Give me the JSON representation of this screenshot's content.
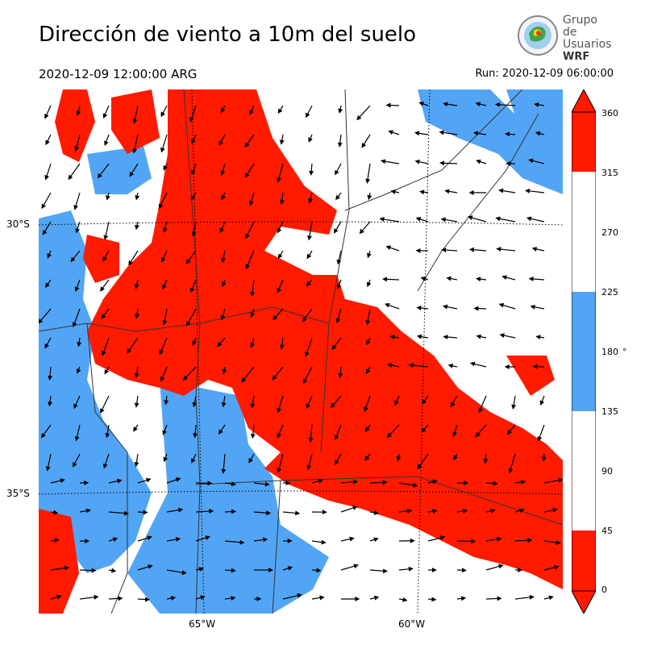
{
  "header": {
    "title": "Dirección de viento a 10m del suelo",
    "valid_time": "2020-12-09 12:00:00 ARG",
    "run_time": "Run: 2020-12-09 06:00:00"
  },
  "logo": {
    "line1": "Grupo de",
    "line2": "Usuarios",
    "line3": "WRF"
  },
  "map": {
    "lat_labels": [
      "30°S",
      "35°S"
    ],
    "lon_labels": [
      "65°W",
      "60°W"
    ],
    "colors": {
      "north": "#ff1a00",
      "south": "#52a5f5",
      "other": "#ffffff"
    }
  },
  "colorbar": {
    "ticks": [
      "360",
      "315",
      "270",
      "225",
      "180",
      "135",
      "90",
      "45",
      "0"
    ],
    "unit": "°",
    "segments": [
      {
        "from": 315,
        "to": 360,
        "color": "#ff1a00"
      },
      {
        "from": 225,
        "to": 315,
        "color": "#ffffff"
      },
      {
        "from": 135,
        "to": 225,
        "color": "#52a5f5"
      },
      {
        "from": 45,
        "to": 135,
        "color": "#ffffff"
      },
      {
        "from": 0,
        "to": 45,
        "color": "#ff1a00"
      }
    ]
  }
}
